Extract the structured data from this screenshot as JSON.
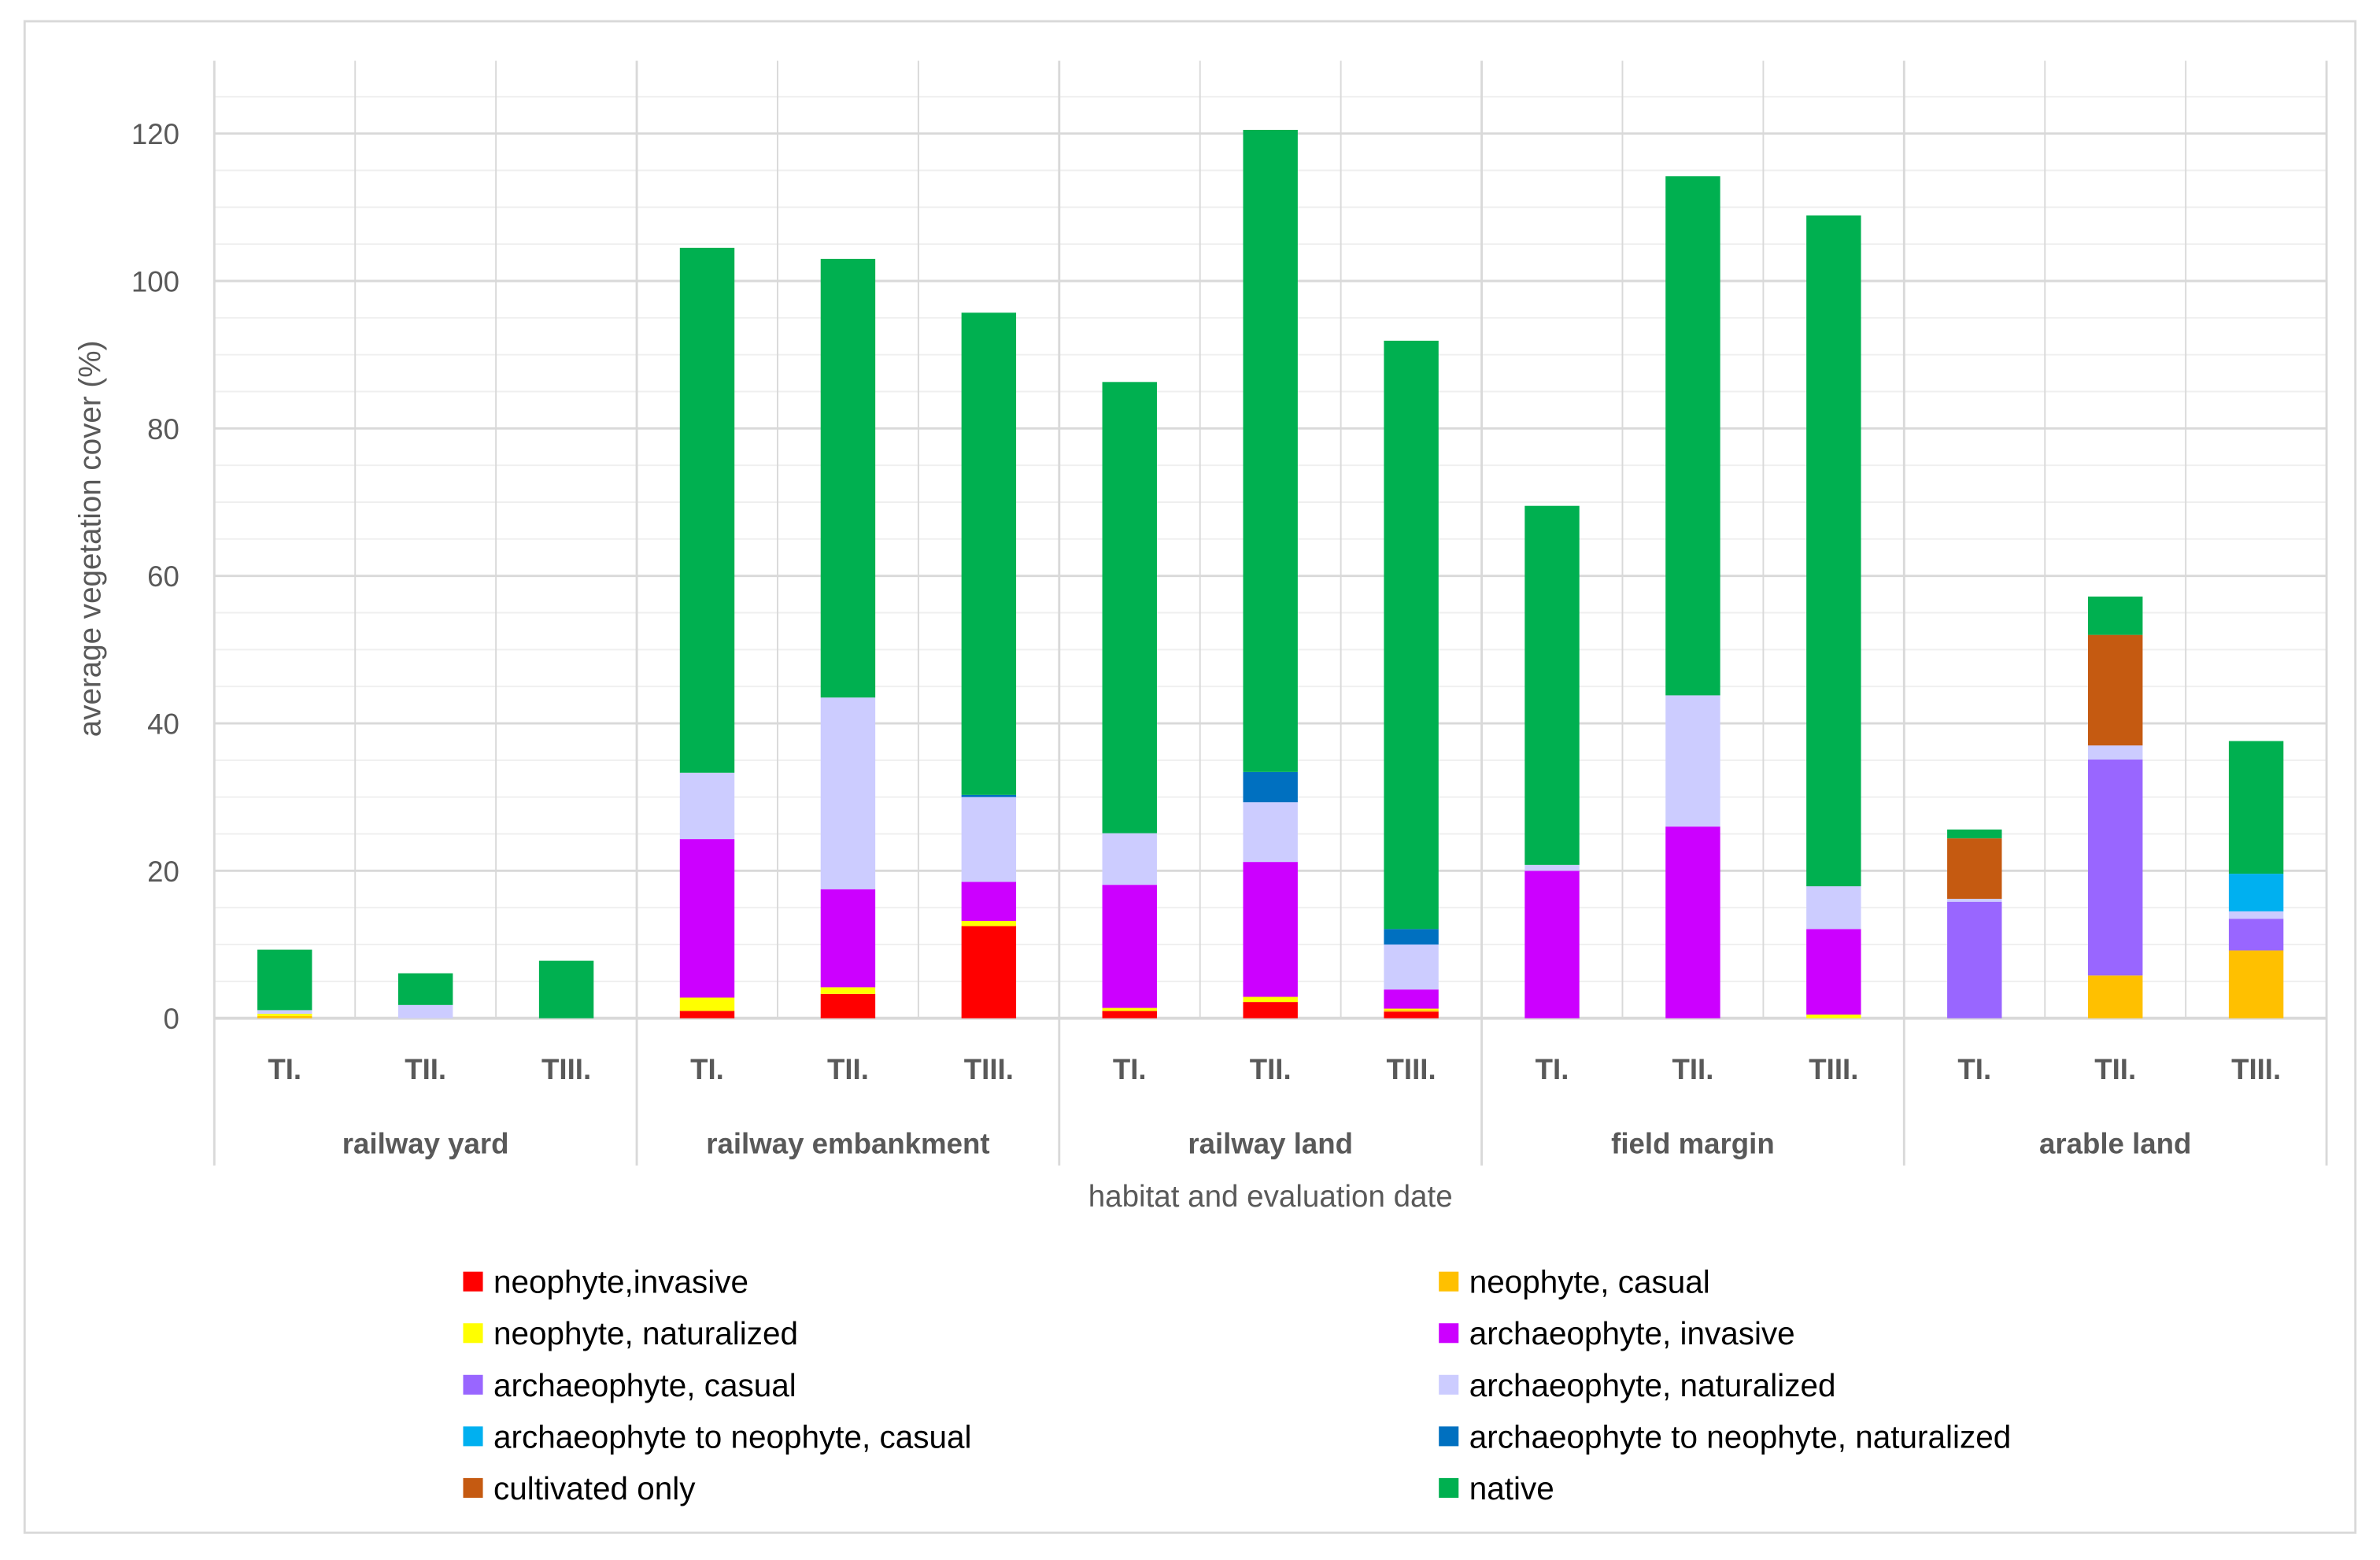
{
  "chart_data": {
    "type": "bar",
    "stacked": true,
    "title": "",
    "xlabel": "habitat and evaluation date",
    "ylabel": "average vegetation cover (%)",
    "ylim": [
      0,
      130
    ],
    "yticks": [
      0,
      20,
      40,
      60,
      80,
      100,
      120
    ],
    "grid": true,
    "legend_position": "bottom",
    "groups": [
      {
        "name": "railway yard",
        "dates": [
          "TI.",
          "TII.",
          "TIII."
        ]
      },
      {
        "name": "railway embankment",
        "dates": [
          "TI.",
          "TII.",
          "TIII."
        ]
      },
      {
        "name": "railway land",
        "dates": [
          "TI.",
          "TII.",
          "TIII."
        ]
      },
      {
        "name": "field margin",
        "dates": [
          "TI.",
          "TII.",
          "TIII."
        ]
      },
      {
        "name": "arable land",
        "dates": [
          "TI.",
          "TII.",
          "TIII."
        ]
      }
    ],
    "series": [
      {
        "name": "neophyte,invasive",
        "color": "#FF0000",
        "values": [
          0,
          0,
          0,
          1.0,
          3.3,
          12.5,
          1.0,
          2.2,
          0.9,
          0,
          0,
          0,
          0,
          0,
          0
        ]
      },
      {
        "name": "neophyte, casual",
        "color": "#FFC000",
        "values": [
          0.3,
          0,
          0,
          0,
          0,
          0,
          0,
          0,
          0.2,
          0,
          0,
          0,
          0,
          5.8,
          9.2
        ]
      },
      {
        "name": "neophyte, naturalized",
        "color": "#FFFF00",
        "values": [
          0.3,
          0,
          0,
          1.8,
          0.9,
          0.7,
          0.4,
          0.7,
          0.2,
          0,
          0,
          0.5,
          0,
          0,
          0
        ]
      },
      {
        "name": "archaeophyte, invasive",
        "color": "#CC00FF",
        "values": [
          0,
          0,
          0,
          21.5,
          13.3,
          5.3,
          16.7,
          18.3,
          2.6,
          20,
          26,
          11.6,
          0,
          0,
          0
        ]
      },
      {
        "name": "archaeophyte, casual",
        "color": "#9966FF",
        "values": [
          0,
          0,
          0,
          0,
          0,
          0,
          0,
          0,
          0,
          0,
          0,
          0,
          15.8,
          29.3,
          4.3
        ]
      },
      {
        "name": "archaeophyte, naturalized",
        "color": "#CCCCFF",
        "values": [
          0.5,
          1.8,
          0,
          9.0,
          26.0,
          11.5,
          7.0,
          8.1,
          6.1,
          0.8,
          17.8,
          5.8,
          0.4,
          1.9,
          1.0
        ]
      },
      {
        "name": "archaeophyte to neophyte, casual",
        "color": "#00B0F0",
        "values": [
          0,
          0,
          0,
          0,
          0,
          0,
          0,
          0,
          0,
          0,
          0,
          0,
          0,
          0,
          5.1
        ]
      },
      {
        "name": "archaeophyte to neophyte, naturalized",
        "color": "#0070C0",
        "values": [
          0,
          0,
          0,
          0,
          0,
          0.3,
          0,
          4.1,
          2.1,
          0,
          0,
          0,
          0,
          0,
          0
        ]
      },
      {
        "name": "cultivated only",
        "color": "#C55A11",
        "values": [
          0,
          0,
          0,
          0,
          0,
          0,
          0,
          0,
          0,
          0,
          0,
          0,
          8.2,
          15.0,
          0
        ]
      },
      {
        "name": "native",
        "color": "#00B050",
        "values": [
          8.2,
          4.3,
          7.8,
          71.2,
          59.5,
          65.4,
          61.2,
          87.1,
          79.8,
          48.7,
          70.4,
          91.0,
          1.2,
          5.2,
          18.0
        ]
      }
    ]
  }
}
